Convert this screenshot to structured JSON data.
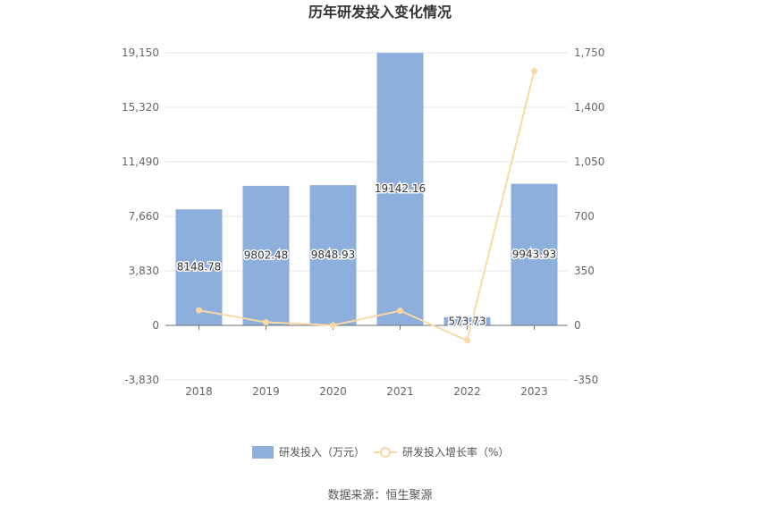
{
  "chart_data": {
    "type": "bar",
    "title": "历年研发投入变化情况",
    "categories": [
      "2018",
      "2019",
      "2020",
      "2021",
      "2022",
      "2023"
    ],
    "series": [
      {
        "name": "研发投入（万元）",
        "type": "bar",
        "axis": "left",
        "values": [
          8148.78,
          9802.48,
          9848.93,
          19142.16,
          573.73,
          9943.93
        ],
        "labels": [
          "8148.78",
          "9802.48",
          "9848.93",
          "19142.16",
          "573.73",
          "9943.93"
        ],
        "color": "#8eaedb"
      },
      {
        "name": "研发投入增长率（%）",
        "type": "line",
        "axis": "right",
        "values": [
          97,
          20,
          0.5,
          94,
          -97,
          1633
        ],
        "color": "#f8d9a6"
      }
    ],
    "y_left": {
      "ticks": [
        "19,150",
        "15,320",
        "11,490",
        "7,660",
        "3,830",
        "0",
        "-3,830"
      ],
      "ylim": [
        -3830,
        19150
      ]
    },
    "y_right": {
      "ticks": [
        "1,750",
        "1,400",
        "1,050",
        "700",
        "350",
        "0",
        "-350"
      ],
      "ylim": [
        -350,
        1750
      ]
    },
    "grid": true,
    "legend_position": "bottom"
  },
  "source": "数据来源：恒生聚源"
}
